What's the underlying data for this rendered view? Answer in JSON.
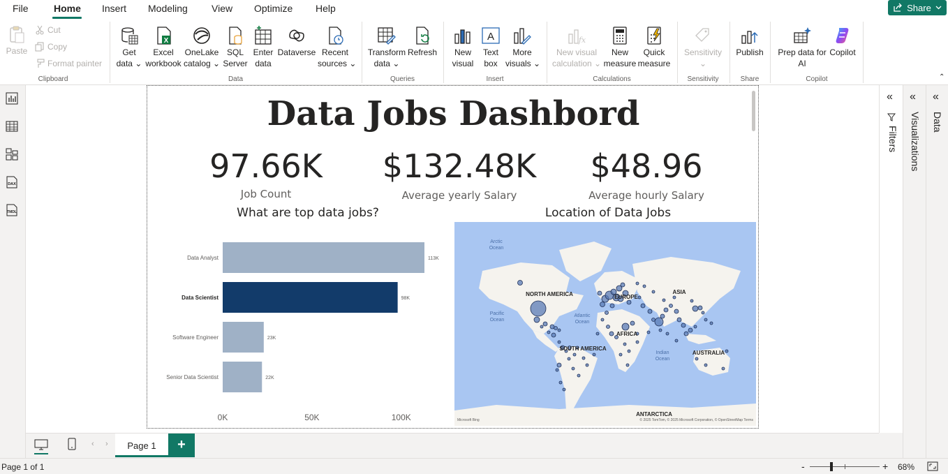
{
  "menu": {
    "tabs": [
      "File",
      "Home",
      "Insert",
      "Modeling",
      "View",
      "Optimize",
      "Help"
    ],
    "share_label": "Share"
  },
  "ribbon": {
    "clipboard": {
      "paste": "Paste",
      "cut": "Cut",
      "copy": "Copy",
      "format_painter": "Format painter",
      "label": "Clipboard"
    },
    "data": {
      "get_data": [
        "Get",
        "data"
      ],
      "excel": [
        "Excel",
        "workbook"
      ],
      "onelake": [
        "OneLake",
        "catalog"
      ],
      "sql": [
        "SQL",
        "Server"
      ],
      "enter": [
        "Enter",
        "data"
      ],
      "dataverse": "Dataverse",
      "recent": [
        "Recent",
        "sources"
      ],
      "label": "Data"
    },
    "queries": {
      "transform": [
        "Transform",
        "data"
      ],
      "refresh": "Refresh",
      "label": "Queries"
    },
    "insert": {
      "new_visual": [
        "New",
        "visual"
      ],
      "text_box": [
        "Text",
        "box"
      ],
      "more_visuals": [
        "More",
        "visuals"
      ],
      "label": "Insert"
    },
    "calculations": {
      "new_visual_calc": [
        "New visual",
        "calculation"
      ],
      "new_measure": [
        "New",
        "measure"
      ],
      "quick_measure": [
        "Quick",
        "measure"
      ],
      "label": "Calculations"
    },
    "sensitivity": {
      "btn": "Sensitivity",
      "label": "Sensitivity"
    },
    "share": {
      "publish": "Publish",
      "label": "Share"
    },
    "copilot": {
      "prep": [
        "Prep data for",
        "AI"
      ],
      "copilot": "Copilot",
      "label": "Copilot"
    }
  },
  "report": {
    "title": "Data Jobs Dashbord",
    "kpis": [
      {
        "value": "97.66K",
        "label": "Job Count"
      },
      {
        "value": "$132.48K",
        "label": "Average yearly Salary"
      },
      {
        "value": "$48.96",
        "label": "Average hourly Salary"
      }
    ],
    "bar_title": "What are top data jobs?",
    "map_title": "Location of Data Jobs"
  },
  "chart_data": {
    "type": "bar",
    "orientation": "horizontal",
    "title": "What are top data jobs?",
    "categories": [
      "Data Analyst",
      "Data Scientist",
      "Software Engineer",
      "Senior Data Scientist"
    ],
    "values": [
      113,
      98,
      23,
      22
    ],
    "data_labels": [
      "113K",
      "98K",
      "23K",
      "22K"
    ],
    "highlighted": "Data Scientist",
    "x_ticks": [
      "0K",
      "50K",
      "100K"
    ],
    "xlim": [
      0,
      113
    ],
    "colors": {
      "bar": "#9fb1c6",
      "highlight": "#123b6a"
    }
  },
  "map": {
    "labels": {
      "arctic": [
        "Arctic",
        "Ocean"
      ],
      "north_america": "NORTH AMERICA",
      "europe": "EUROPE",
      "asia": "ASIA",
      "pacific": [
        "Pacific",
        "Ocean"
      ],
      "atlantic": [
        "Atlantic",
        "Ocean"
      ],
      "africa": "AFRICA",
      "south_america": "SOUTH AMERICA",
      "indian": [
        "Indian",
        "Ocean"
      ],
      "australia": "AUSTRALIA",
      "antarctica": "ANTARCTICA"
    },
    "attribution": "© 2025 TomTom, © 2025 Microsoft Corporation, © OpenStreetMap  Terms",
    "logo": "Microsoft Bing",
    "colors": {
      "water": "#a9c6f2",
      "land": "#f5f3ee",
      "bubble": "#5a7bb5"
    }
  },
  "pages": {
    "tab": "Page 1",
    "add": "+"
  },
  "panes": {
    "filters": "Filters",
    "visualizations": "Visualizations",
    "data": "Data"
  },
  "status": {
    "page": "Page 1 of 1",
    "zoom": "68%",
    "minus": "-",
    "plus": "+"
  }
}
